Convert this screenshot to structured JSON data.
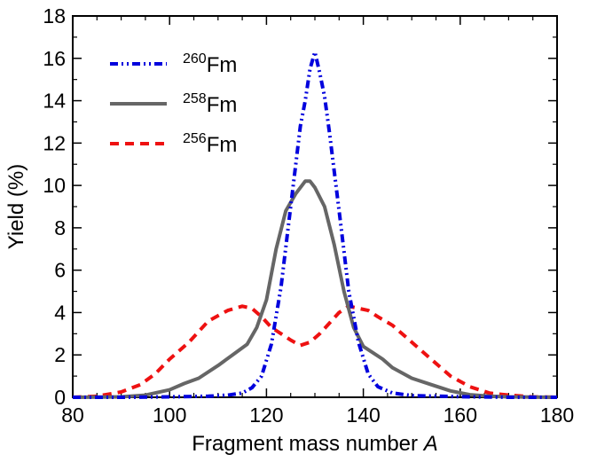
{
  "chart_data": {
    "type": "line",
    "title": "",
    "xlabel": "Fragment mass number",
    "xlabel_var": "A",
    "ylabel": "Yield (%)",
    "xlim": [
      80,
      180
    ],
    "ylim": [
      0,
      18
    ],
    "xticks": [
      80,
      100,
      120,
      140,
      160,
      180
    ],
    "yticks": [
      0,
      2,
      4,
      6,
      8,
      10,
      12,
      14,
      16,
      18
    ],
    "legend_position": "top-left",
    "series": [
      {
        "name": "260Fm",
        "mass": "260",
        "element": "Fm",
        "color": "#0000dd",
        "style": "dash-dot-dot",
        "x": [
          80,
          90,
          100,
          108,
          112,
          115,
          117,
          119,
          121,
          123,
          125,
          127,
          128,
          129,
          130,
          131,
          132,
          133,
          135,
          137,
          139,
          141,
          143,
          146,
          150,
          160,
          170,
          180
        ],
        "y": [
          0,
          0,
          0.02,
          0.05,
          0.1,
          0.2,
          0.45,
          1.0,
          2.5,
          5.2,
          9.0,
          12.8,
          14.0,
          15.5,
          16.3,
          15.3,
          14.2,
          12.5,
          8.8,
          5.0,
          2.6,
          1.1,
          0.5,
          0.2,
          0.08,
          0.03,
          0,
          0
        ]
      },
      {
        "name": "258Fm",
        "mass": "258",
        "element": "Fm",
        "color": "#666666",
        "style": "solid",
        "x": [
          80,
          90,
          95,
          100,
          103,
          106,
          110,
          113,
          116,
          118,
          120,
          122,
          124,
          126,
          128,
          129,
          130,
          132,
          134,
          136,
          138,
          140,
          142,
          144,
          146,
          150,
          154,
          158,
          162,
          166,
          170,
          180
        ],
        "y": [
          0,
          0.02,
          0.1,
          0.35,
          0.65,
          0.9,
          1.5,
          2.0,
          2.5,
          3.3,
          4.6,
          7.0,
          8.8,
          9.6,
          10.2,
          10.2,
          9.9,
          9.0,
          7.2,
          5.0,
          3.3,
          2.4,
          2.1,
          1.8,
          1.4,
          0.9,
          0.6,
          0.3,
          0.12,
          0.05,
          0.02,
          0
        ]
      },
      {
        "name": "256Fm",
        "mass": "256",
        "element": "Fm",
        "color": "#ee1111",
        "style": "dashed",
        "x": [
          80,
          85,
          90,
          94,
          97,
          100,
          104,
          108,
          112,
          115,
          117,
          119,
          121,
          123,
          125,
          127,
          129,
          131,
          133,
          135,
          137,
          139,
          141,
          143,
          146,
          150,
          154,
          158,
          162,
          166,
          170,
          175,
          180
        ],
        "y": [
          0,
          0.05,
          0.25,
          0.6,
          1.1,
          1.8,
          2.6,
          3.6,
          4.1,
          4.3,
          4.2,
          3.8,
          3.3,
          3.0,
          2.7,
          2.45,
          2.6,
          3.0,
          3.5,
          4.0,
          4.3,
          4.2,
          4.1,
          3.8,
          3.4,
          2.6,
          1.8,
          1.0,
          0.5,
          0.2,
          0.1,
          0.02,
          0
        ]
      }
    ]
  }
}
